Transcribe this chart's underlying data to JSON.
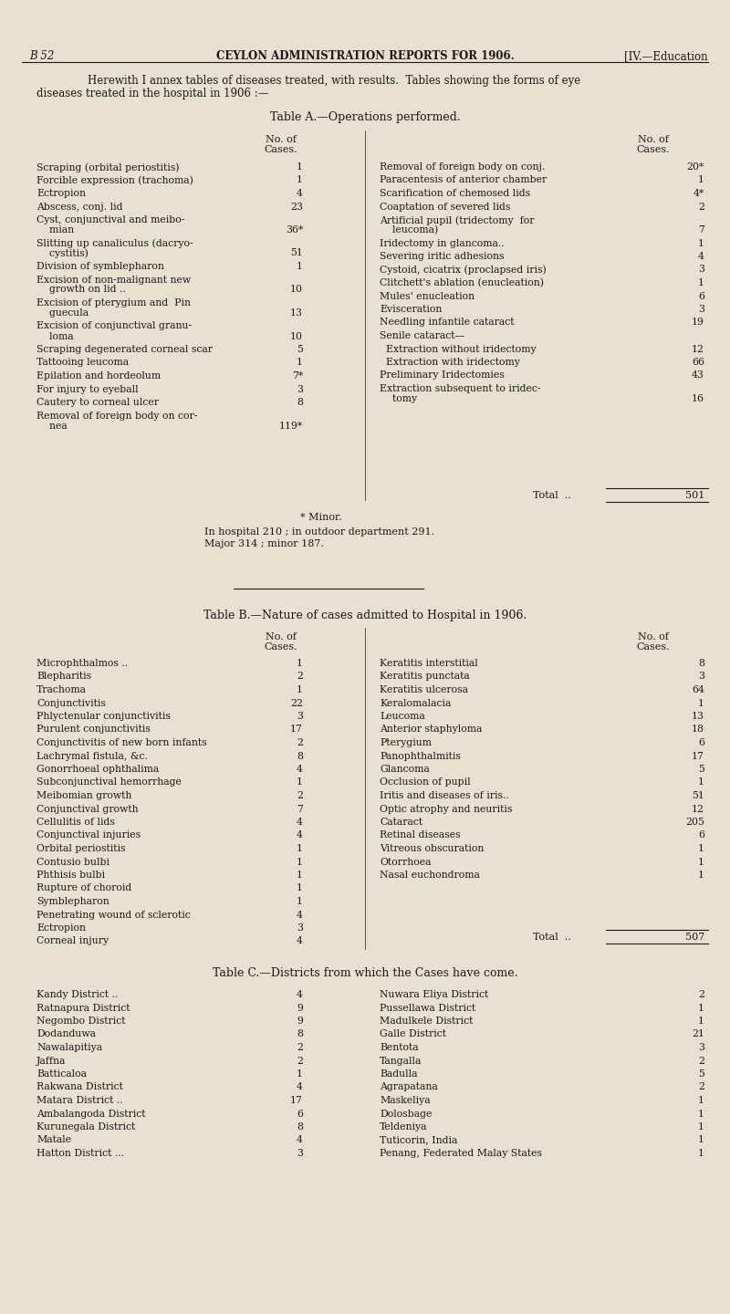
{
  "bg_color": "#e8e0d0",
  "text_color": "#1a1a1a",
  "header_left": "B 52",
  "header_center": "CEYLON ADMINISTRATION REPORTS FOR 1906.",
  "header_right": "[IV.—Education",
  "intro_line1": "Herewith I annex tables of diseases treated, with results.  Tables showing the forms of eye",
  "intro_line2": "diseases treated in the hospital in 1906 :—",
  "table_a_title": "Table A.—Operations performed.",
  "table_a_left": [
    [
      "Scraping (orbital periostitis)",
      "1"
    ],
    [
      "Forcible expression (trachoma)",
      "1"
    ],
    [
      "Ectropion",
      "4"
    ],
    [
      "Abscess, conj. lid",
      "23"
    ],
    [
      "Cyst, conjunctival and meibo-\n    mian",
      "36*"
    ],
    [
      "Slitting up canaliculus (dacryo-\n    cystitis)",
      "51"
    ],
    [
      "Division of symblepharon",
      "1"
    ],
    [
      "Excision of non-malignant new\n    growth on lid ..",
      "10"
    ],
    [
      "Excision of pterygium and  Pin\n    guecula",
      "13"
    ],
    [
      "Excision of conjunctival granu-\n    loma",
      "10"
    ],
    [
      "Scraping degenerated corneal scar",
      "5"
    ],
    [
      "Tattooing leucoma",
      "1"
    ],
    [
      "Epilation and hordeolum",
      "7*"
    ],
    [
      "For injury to eyeball",
      "3"
    ],
    [
      "Cautery to corneal ulcer",
      "8"
    ],
    [
      "Removal of foreign body on cor-\n    nea",
      "119*"
    ]
  ],
  "table_a_right": [
    [
      "Removal of foreign body on conj.",
      "20*"
    ],
    [
      "Paracentesis of anterior chamber",
      "1"
    ],
    [
      "Scarification of chemosed lids",
      "4*"
    ],
    [
      "Coaptation of severed lids",
      "2"
    ],
    [
      "Artificial pupil (tridectomy  for\n    leucoma)",
      "7"
    ],
    [
      "Iridectomy in glancoma..",
      "1"
    ],
    [
      "Severing iritic adhesions",
      "4"
    ],
    [
      "Cystoid, cicatrix (proclapsed iris)",
      "3"
    ],
    [
      "Clitchett's ablation (enucleation)",
      "1"
    ],
    [
      "Mules' enucleation",
      "6"
    ],
    [
      "Evisceration",
      "3"
    ],
    [
      "Needling infantile cataract",
      "19"
    ],
    [
      "Senile cataract—",
      ""
    ],
    [
      "  Extraction without iridectomy",
      "12"
    ],
    [
      "  Extraction with iridectomy",
      "66"
    ],
    [
      "Preliminary Iridectomies",
      "43"
    ],
    [
      "Extraction subsequent to iridec-\n    tomy",
      "16"
    ]
  ],
  "table_a_minor_note": "* Minor.",
  "table_a_notes_1": "In hospital 210 ; in outdoor department 291.",
  "table_a_notes_2": "Major 314 ; minor 187.",
  "table_b_title": "Table B.—Nature of cases admitted to Hospital in 1906.",
  "table_b_left": [
    [
      "Microphthalmos ..",
      "1"
    ],
    [
      "Blepharitis",
      "2"
    ],
    [
      "Trachoma",
      "1"
    ],
    [
      "Conjunctivitis",
      "22"
    ],
    [
      "Phlyctenular conjunctivitis",
      "3"
    ],
    [
      "Purulent conjunctivitis",
      "17"
    ],
    [
      "Conjunctivitis of new born infants",
      "2"
    ],
    [
      "Lachrymal fistula, &c.",
      "8"
    ],
    [
      "Gonorrhoeal ophthalima",
      "4"
    ],
    [
      "Subconjunctival hemorrhage",
      "1"
    ],
    [
      "Meibomian growth",
      "2"
    ],
    [
      "Conjunctival growth",
      "7"
    ],
    [
      "Cellulitis of lids",
      "4"
    ],
    [
      "Conjunctival injuries",
      "4"
    ],
    [
      "Orbital periostitis",
      "1"
    ],
    [
      "Contusio bulbi",
      "1"
    ],
    [
      "Phthisis bulbi",
      "1"
    ],
    [
      "Rupture of choroid",
      "1"
    ],
    [
      "Symblepharon",
      "1"
    ],
    [
      "Penetrating wound of sclerotic",
      "4"
    ],
    [
      "Ectropion",
      "3"
    ],
    [
      "Corneal injury",
      "4"
    ]
  ],
  "table_b_right": [
    [
      "Keratitis interstitial",
      "8"
    ],
    [
      "Keratitis punctata",
      "3"
    ],
    [
      "Keratitis ulcerosa",
      "64"
    ],
    [
      "Keralomalacia",
      "1"
    ],
    [
      "Leucoma",
      "13"
    ],
    [
      "Anterior staphyloma",
      "18"
    ],
    [
      "Pterygium",
      "6"
    ],
    [
      "Panophthalmitis",
      "17"
    ],
    [
      "Glancoma",
      "5"
    ],
    [
      "Occlusion of pupil",
      "1"
    ],
    [
      "Iritis and diseases of iris..",
      "51"
    ],
    [
      "Optic atrophy and neuritis",
      "12"
    ],
    [
      "Cataract",
      "205"
    ],
    [
      "Retinal diseases",
      "6"
    ],
    [
      "Vitreous obscuration",
      "1"
    ],
    [
      "Otorrhoea",
      "1"
    ],
    [
      "Nasal euchondroma",
      "1"
    ]
  ],
  "table_c_title": "Table C.—Districts from which the Cases have come.",
  "table_c_left": [
    [
      "Kandy District ..",
      "4"
    ],
    [
      "Ratnapura District",
      "9"
    ],
    [
      "Negombo District",
      "9"
    ],
    [
      "Dodanduwa",
      "8"
    ],
    [
      "Nawalapitiya",
      "2"
    ],
    [
      "Jaffna",
      "2"
    ],
    [
      "Batticaloa",
      "1"
    ],
    [
      "Rakwana District",
      "4"
    ],
    [
      "Matara District ..",
      "17"
    ],
    [
      "Ambalangoda District",
      "6"
    ],
    [
      "Kurunegala District",
      "8"
    ],
    [
      "Matale",
      "4"
    ],
    [
      "Hatton District ...",
      "3"
    ]
  ],
  "table_c_right": [
    [
      "Nuwara Eliya District",
      "2"
    ],
    [
      "Pussellawa District",
      "1"
    ],
    [
      "Madulkele District",
      "1"
    ],
    [
      "Galle District",
      "21"
    ],
    [
      "Bentota",
      "3"
    ],
    [
      "Tangalla",
      "2"
    ],
    [
      "Badulla",
      "5"
    ],
    [
      "Agrapatana",
      "2"
    ],
    [
      "Maskeliya",
      "1"
    ],
    [
      "Dolosbage",
      "1"
    ],
    [
      "Teldeniya",
      "1"
    ],
    [
      "Tuticorin, India",
      "1"
    ],
    [
      "Penang, Federated Malay States",
      "1"
    ]
  ]
}
